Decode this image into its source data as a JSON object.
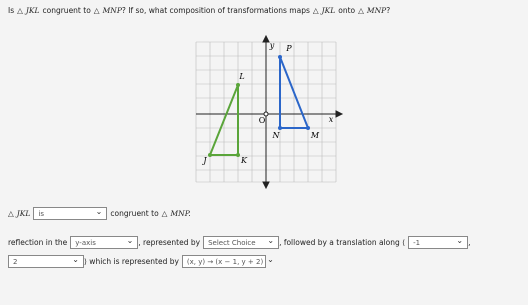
{
  "question": {
    "is": "Is",
    "tri": "△",
    "jkl": "JKL",
    "congruent": "congruent to",
    "mnp": "MNP",
    "mid": "? If so, what composition of transformations maps",
    "onto": "onto",
    "end": "?"
  },
  "figure": {
    "y": "y",
    "x": "x",
    "o": "O",
    "p": "P",
    "l": "L",
    "n": "N",
    "m": "M",
    "j": "J",
    "k": "K"
  },
  "answer": {
    "tri": "△",
    "jkl": "JKL",
    "is": "is",
    "congruent": "congruent to",
    "mnp": "MNP.",
    "reflection": "reflection in the",
    "axis": "y-axis",
    "represented": ", represented by",
    "choice": "Select Choice",
    "followed": ", followed by a translation along ⟨",
    "dx": "-1",
    "comma": ",",
    "dy": "2",
    "which": "⟩ which is represented by",
    "rule": "(x, y) → (x − 1, y + 2)"
  }
}
